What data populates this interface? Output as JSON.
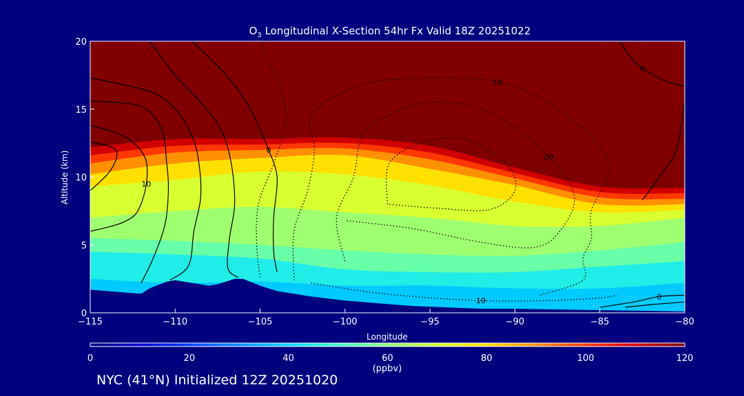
{
  "colors": {
    "background": "#00007f",
    "frame": "#ffffff",
    "terrain": "#00007f",
    "contour": "#000000"
  },
  "chart_data": {
    "type": "heatmap",
    "title_species": "O",
    "title_subscript": "3",
    "title_rest": " Longitudinal X-Section 54hr  Fx Valid 18Z 20251022",
    "xlabel": "Longitude",
    "ylabel": "Altitude (km)",
    "xlim": [
      -115,
      -80
    ],
    "ylim": [
      0,
      20
    ],
    "x_ticks": [
      -115,
      -110,
      -105,
      -100,
      -95,
      -90,
      -85,
      -80
    ],
    "x_tick_labels": [
      "−115",
      "−110",
      "−105",
      "−100",
      "−95",
      "−90",
      "−85",
      "−80"
    ],
    "y_ticks": [
      0,
      5,
      10,
      15,
      20
    ],
    "y_tick_labels": [
      "0",
      "5",
      "10",
      "15",
      "20"
    ],
    "field_variable": "O3 mixing ratio",
    "colorbar": {
      "min": 0,
      "max": 120,
      "ticks": [
        0,
        20,
        40,
        60,
        80,
        100,
        120
      ],
      "tick_labels": [
        "0",
        "20",
        "40",
        "60",
        "80",
        "100",
        "120"
      ],
      "unit": "(ppbv)",
      "stops": [
        {
          "value": 0,
          "color": "#00007f"
        },
        {
          "value": 10,
          "color": "#0000d0"
        },
        {
          "value": 20,
          "color": "#0040ff"
        },
        {
          "value": 30,
          "color": "#0090ff"
        },
        {
          "value": 40,
          "color": "#00d8ff"
        },
        {
          "value": 50,
          "color": "#40ffd0"
        },
        {
          "value": 60,
          "color": "#90ff80"
        },
        {
          "value": 70,
          "color": "#d8ff30"
        },
        {
          "value": 80,
          "color": "#ffe000"
        },
        {
          "value": 90,
          "color": "#ff9000"
        },
        {
          "value": 100,
          "color": "#ff3800"
        },
        {
          "value": 110,
          "color": "#d00000"
        },
        {
          "value": 120,
          "color": "#800000"
        }
      ]
    },
    "bands": [
      {
        "value": 38,
        "top": [
          [
            -115,
            2.5
          ],
          [
            -110,
            2.2
          ],
          [
            -105,
            2.3
          ],
          [
            -100,
            2.0
          ],
          [
            -95,
            2.0
          ],
          [
            -90,
            1.8
          ],
          [
            -85,
            1.8
          ],
          [
            -80,
            2.2
          ]
        ]
      },
      {
        "value": 45,
        "top": [
          [
            -115,
            4.5
          ],
          [
            -110,
            4.3
          ],
          [
            -105,
            4.0
          ],
          [
            -100,
            3.2
          ],
          [
            -95,
            3.0
          ],
          [
            -90,
            3.0
          ],
          [
            -85,
            3.4
          ],
          [
            -80,
            3.8
          ]
        ]
      },
      {
        "value": 55,
        "top": [
          [
            -115,
            5.5
          ],
          [
            -110,
            5.3
          ],
          [
            -105,
            5.0
          ],
          [
            -100,
            4.6
          ],
          [
            -95,
            4.3
          ],
          [
            -90,
            4.2
          ],
          [
            -85,
            4.6
          ],
          [
            -80,
            5.2
          ]
        ]
      },
      {
        "value": 62,
        "top": [
          [
            -115,
            7.0
          ],
          [
            -110,
            7.5
          ],
          [
            -105,
            7.8
          ],
          [
            -100,
            7.4
          ],
          [
            -95,
            7.0
          ],
          [
            -90,
            6.4
          ],
          [
            -85,
            6.4
          ],
          [
            -80,
            7.0
          ]
        ]
      },
      {
        "value": 70,
        "top": [
          [
            -115,
            9.3
          ],
          [
            -110,
            9.8
          ],
          [
            -105,
            10.4
          ],
          [
            -100,
            10.2
          ],
          [
            -95,
            9.4
          ],
          [
            -90,
            8.2
          ],
          [
            -85,
            7.4
          ],
          [
            -80,
            7.6
          ]
        ]
      },
      {
        "value": 80,
        "top": [
          [
            -115,
            10.2
          ],
          [
            -110,
            11.0
          ],
          [
            -105,
            11.4
          ],
          [
            -100,
            11.6
          ],
          [
            -95,
            10.6
          ],
          [
            -90,
            9.4
          ],
          [
            -85,
            8.0
          ],
          [
            -80,
            8.0
          ]
        ]
      },
      {
        "value": 90,
        "top": [
          [
            -115,
            11.0
          ],
          [
            -110,
            11.8
          ],
          [
            -105,
            12.0
          ],
          [
            -100,
            12.1
          ],
          [
            -95,
            11.3
          ],
          [
            -90,
            9.9
          ],
          [
            -85,
            8.5
          ],
          [
            -80,
            8.4
          ]
        ]
      },
      {
        "value": 100,
        "top": [
          [
            -115,
            11.6
          ],
          [
            -110,
            12.3
          ],
          [
            -105,
            12.4
          ],
          [
            -100,
            12.5
          ],
          [
            -95,
            11.8
          ],
          [
            -90,
            10.3
          ],
          [
            -85,
            8.9
          ],
          [
            -80,
            8.8
          ]
        ]
      },
      {
        "value": 110,
        "top": [
          [
            -115,
            12.2
          ],
          [
            -110,
            12.8
          ],
          [
            -105,
            12.8
          ],
          [
            -100,
            12.9
          ],
          [
            -95,
            12.3
          ],
          [
            -90,
            10.7
          ],
          [
            -85,
            9.3
          ],
          [
            -80,
            9.2
          ]
        ]
      }
    ],
    "upper_fill_value": 120,
    "terrain": [
      [
        -115,
        1.7
      ],
      [
        -113,
        1.5
      ],
      [
        -112,
        1.4
      ],
      [
        -111.5,
        1.8
      ],
      [
        -110.5,
        2.3
      ],
      [
        -110,
        2.4
      ],
      [
        -109,
        2.2
      ],
      [
        -108,
        2.0
      ],
      [
        -107.5,
        2.1
      ],
      [
        -106.5,
        2.5
      ],
      [
        -106,
        2.5
      ],
      [
        -105,
        2.0
      ],
      [
        -104,
        1.6
      ],
      [
        -102,
        1.2
      ],
      [
        -100,
        0.9
      ],
      [
        -98,
        0.7
      ],
      [
        -96,
        0.5
      ],
      [
        -94,
        0.4
      ],
      [
        -92,
        0.3
      ],
      [
        -90,
        0.3
      ],
      [
        -85,
        0.2
      ],
      [
        -80,
        0.1
      ]
    ],
    "contours": [
      {
        "label": "0",
        "style": "solid",
        "points": [
          [
            -109,
            20
          ],
          [
            -107,
            17.5
          ],
          [
            -105.8,
            15.5
          ],
          [
            -105,
            13.5
          ],
          [
            -104.5,
            12
          ],
          [
            -104,
            10
          ],
          [
            -104.2,
            7
          ],
          [
            -104.2,
            4.5
          ],
          [
            -104,
            3
          ]
        ]
      },
      {
        "label": "",
        "style": "solid",
        "points": [
          [
            -111.5,
            20
          ],
          [
            -110,
            17.5
          ],
          [
            -108.5,
            15.5
          ],
          [
            -107.3,
            13.5
          ],
          [
            -106.7,
            11
          ],
          [
            -106.5,
            8
          ],
          [
            -106.8,
            5.5
          ],
          [
            -106.9,
            3.3
          ],
          [
            -106.3,
            2.6
          ]
        ]
      },
      {
        "label": "",
        "style": "solid",
        "points": [
          [
            -115,
            17.3
          ],
          [
            -111.5,
            16.3
          ],
          [
            -110,
            15
          ],
          [
            -109,
            13
          ],
          [
            -108.6,
            11
          ],
          [
            -108.5,
            8.5
          ],
          [
            -108.9,
            6
          ],
          [
            -109.2,
            3.5
          ],
          [
            -110.3,
            2.4
          ]
        ]
      },
      {
        "label": "",
        "style": "solid",
        "points": [
          [
            -115,
            15.6
          ],
          [
            -112,
            15.2
          ],
          [
            -110.8,
            13.5
          ],
          [
            -110.5,
            11
          ],
          [
            -110.4,
            9
          ],
          [
            -110.6,
            6.5
          ],
          [
            -111.3,
            4
          ],
          [
            -112,
            2.2
          ]
        ]
      },
      {
        "label": "10",
        "style": "solid",
        "points": [
          [
            -115,
            6.0
          ],
          [
            -114,
            6.3
          ],
          [
            -113,
            6.7
          ],
          [
            -112.2,
            7.5
          ],
          [
            -111.7,
            9.5
          ],
          [
            -111.8,
            11.5
          ],
          [
            -113,
            13
          ],
          [
            -115,
            13.8
          ]
        ]
      },
      {
        "label": "",
        "style": "solid",
        "points": [
          [
            -115,
            9.0
          ],
          [
            -113.8,
            10.5
          ],
          [
            -113.5,
            12
          ],
          [
            -115,
            12.6
          ]
        ]
      },
      {
        "label": "",
        "style": "solid",
        "points": [
          [
            -115,
            1.5
          ],
          [
            -113,
            1.3
          ],
          [
            -112,
            1.4
          ]
        ]
      },
      {
        "label": "0",
        "style": "solid",
        "points": [
          [
            -83.8,
            20
          ],
          [
            -83.3,
            19
          ],
          [
            -82.5,
            18
          ],
          [
            -81,
            17
          ],
          [
            -80,
            16.7
          ]
        ]
      },
      {
        "label": "",
        "style": "solid",
        "points": [
          [
            -80,
            15.5
          ],
          [
            -80.5,
            12
          ],
          [
            -81.5,
            10
          ],
          [
            -82.5,
            8.3
          ]
        ]
      },
      {
        "label": "0",
        "style": "solid",
        "points": [
          [
            -85,
            0.4
          ],
          [
            -83,
            0.8
          ],
          [
            -81.5,
            1.2
          ],
          [
            -80,
            1.3
          ]
        ]
      },
      {
        "label": "",
        "style": "solid",
        "points": [
          [
            -83.5,
            0.4
          ],
          [
            -82,
            0.6
          ],
          [
            -80,
            0.8
          ]
        ]
      },
      {
        "label": "",
        "style": "dotted",
        "points": [
          [
            -105,
            2.6
          ],
          [
            -105.2,
            5
          ],
          [
            -105.1,
            8
          ],
          [
            -104.2,
            11
          ],
          [
            -103.5,
            14
          ],
          [
            -103.8,
            16.5
          ],
          [
            -104.5,
            18.5
          ],
          [
            -105,
            20
          ]
        ]
      },
      {
        "label": "10",
        "style": "dotted",
        "points": [
          [
            -103,
            2.4
          ],
          [
            -103,
            6
          ],
          [
            -102.2,
            9
          ],
          [
            -101.8,
            12
          ],
          [
            -102,
            14.5
          ],
          [
            -100,
            16.3
          ],
          [
            -97,
            17.2
          ],
          [
            -91,
            17
          ],
          [
            -87,
            14.6
          ],
          [
            -84.5,
            11
          ],
          [
            -85.5,
            7.5
          ],
          [
            -85.5,
            5.5
          ],
          [
            -86,
            4
          ],
          [
            -86,
            2.4
          ],
          [
            -88.5,
            1.3
          ]
        ]
      },
      {
        "label": "20",
        "style": "dotted",
        "points": [
          [
            -100,
            3.8
          ],
          [
            -100.5,
            7
          ],
          [
            -99.5,
            10
          ],
          [
            -99,
            13
          ],
          [
            -97.5,
            14.5
          ],
          [
            -95,
            15.5
          ],
          [
            -91.5,
            14.8
          ],
          [
            -88,
            11.5
          ],
          [
            -86.5,
            8.5
          ],
          [
            -87.5,
            5.8
          ],
          [
            -89,
            4.8
          ],
          [
            -92,
            5.2
          ],
          [
            -96,
            6.2
          ],
          [
            -100,
            6.8
          ]
        ]
      },
      {
        "label": "",
        "style": "dotted",
        "points": [
          [
            -97.5,
            8
          ],
          [
            -97.4,
            11
          ],
          [
            -95.5,
            12.5
          ],
          [
            -93,
            12.8
          ],
          [
            -90.5,
            11
          ],
          [
            -90,
            9
          ],
          [
            -91.5,
            7.6
          ],
          [
            -94.5,
            7.7
          ],
          [
            -97.5,
            8
          ]
        ]
      },
      {
        "label": "10",
        "style": "dotted",
        "points": [
          [
            -102,
            2.2
          ],
          [
            -99,
            1.6
          ],
          [
            -96,
            1.2
          ],
          [
            -92,
            0.9
          ],
          [
            -88,
            0.9
          ],
          [
            -85,
            1.1
          ],
          [
            -84,
            1.3
          ]
        ]
      }
    ]
  },
  "footer": "NYC (41°N) Initialized 12Z 20251020"
}
